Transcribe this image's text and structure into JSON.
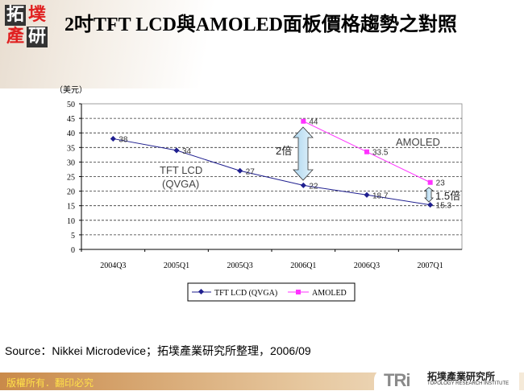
{
  "header": {
    "logo_chars": [
      "拓",
      "墣",
      "產",
      "研"
    ],
    "title": "2吋TFT LCD與AMOLED面板價格趨勢之對照"
  },
  "chart_data": {
    "type": "line",
    "title": "",
    "ylabel": "（美元）",
    "xlabel": "",
    "ylim": [
      0,
      50
    ],
    "yticks": [
      0,
      5,
      10,
      15,
      20,
      25,
      30,
      35,
      40,
      45,
      50
    ],
    "grid": "horizontal dashed",
    "categories": [
      "2004Q3",
      "2005Q1",
      "2005Q3",
      "2006Q1",
      "2006Q3",
      "2007Q1"
    ],
    "series": [
      {
        "name": "TFT LCD (QVGA)",
        "color": "#1f1f8f",
        "marker": "diamond",
        "values": [
          38,
          34,
          27,
          22,
          18.7,
          15.3
        ],
        "labels": [
          "38",
          "34",
          "27",
          "22",
          "18.7",
          "15.3"
        ]
      },
      {
        "name": "AMOLED",
        "color": "#ff33ff",
        "marker": "square",
        "values": [
          null,
          null,
          null,
          44,
          33.5,
          23
        ],
        "labels": [
          "",
          "",
          "",
          "44",
          "33.5",
          "23"
        ]
      }
    ],
    "annotations": {
      "tft": [
        "TFT LCD",
        "(QVGA)"
      ],
      "amoled": "AMOLED",
      "gap1": "2倍",
      "gap2": "1.5倍"
    },
    "legend": "bottom"
  },
  "source": "Source：Nikkei Microdevice；拓墣產業研究所整理，2006/09",
  "footer": {
    "copyright": "版權所有．翻印必究",
    "tri_logo": "TRi",
    "tri_zh": "拓墣產業研究所",
    "tri_en": "TOPOLOGY RESEARCH INSTITUTE"
  }
}
